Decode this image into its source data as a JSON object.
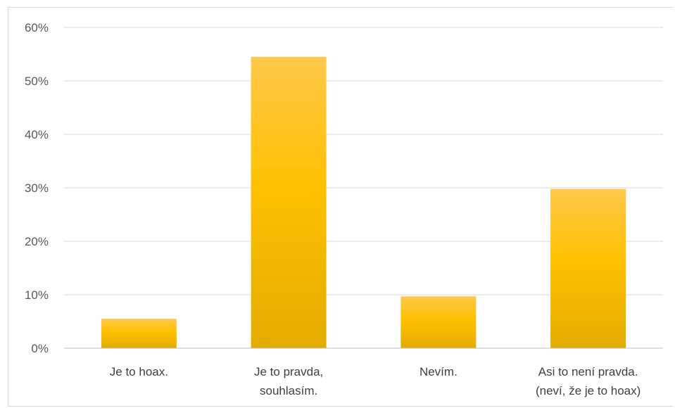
{
  "chart_data": {
    "type": "bar",
    "categories": [
      [
        "Je to hoax."
      ],
      [
        "Je to pravda,",
        "souhlasím."
      ],
      [
        "Nevím."
      ],
      [
        "Asi to není pravda.",
        "(neví, že je to hoax)"
      ]
    ],
    "values": [
      0.055,
      0.545,
      0.097,
      0.298
    ],
    "ylim": [
      0,
      0.6
    ],
    "yticks": [
      0,
      0.1,
      0.2,
      0.3,
      0.4,
      0.5,
      0.6
    ],
    "ytick_labels": [
      "0%",
      "10%",
      "20%",
      "30%",
      "40%",
      "50%",
      "60%"
    ],
    "title": "",
    "xlabel": "",
    "ylabel": "",
    "grid": true,
    "legend": "none",
    "colors": {
      "bar_light": "#FFC84A",
      "bar_mid": "#FFC000",
      "bar_dark": "#E2AC00",
      "grid": "#d9d9d9",
      "axis": "#bfbfbf"
    }
  }
}
